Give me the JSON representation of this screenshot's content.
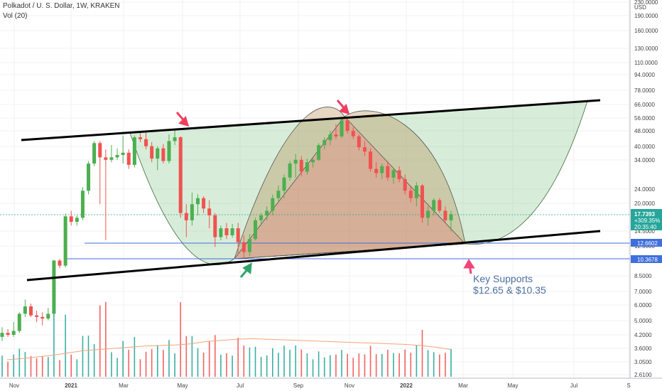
{
  "header": {
    "symbol_line": "Polkadot / U. S. Dollar, 1W, KRAKEN",
    "volume_line": "Vol (20)"
  },
  "annotation": {
    "line1": "Key Supports",
    "line2": "$12.65 & $10.35"
  },
  "colors": {
    "up": "#26a69a",
    "up_candle": "#4caf50",
    "down": "#ef5350",
    "volume_ma": "#f4a37a",
    "support_line": "#3f6fdc",
    "channel": "#000000",
    "arrow_red": "#ef3f5f",
    "arrow_green": "#2fa36b",
    "arrow_pink": "#f0457a"
  },
  "chart_data": {
    "type": "candlestick",
    "title": "Polkadot / U. S. Dollar, 1W, KRAKEN",
    "indicator": "Vol (20)",
    "currency": "USD",
    "y_scale": "log",
    "x_axis_labels": [
      "Nov",
      "2021",
      "Mar",
      "May",
      "Jul",
      "Sep",
      "Nov",
      "2022",
      "Mar",
      "May",
      "Jul",
      "S"
    ],
    "y_axis_labels": [
      "230.0000",
      "USD",
      "190.0000",
      "160.0000",
      "130.0000",
      "110.0000",
      "94.0000",
      "78.0000",
      "66.0000",
      "56.0000",
      "48.0000",
      "40.0000",
      "34.0000",
      "24.0000",
      "20.0000",
      "14.5000",
      "12.0000",
      "8.5000",
      "7.0000",
      "6.0000",
      "5.0000",
      "4.2000",
      "3.6000",
      "3.0500",
      "2.6100"
    ],
    "price_tag": {
      "price": "17.7393",
      "change": "+309.35%",
      "countdown": "20:35:40"
    },
    "support_tags": [
      "12.6602",
      "10.3678"
    ],
    "supports": [
      12.6602,
      10.3678
    ],
    "candles": [
      {
        "o": 4.1,
        "h": 4.6,
        "l": 3.9,
        "c": 4.3
      },
      {
        "o": 4.3,
        "h": 4.5,
        "l": 4.1,
        "c": 4.2
      },
      {
        "o": 4.2,
        "h": 4.9,
        "l": 4.1,
        "c": 4.4
      },
      {
        "o": 4.4,
        "h": 5.5,
        "l": 4.3,
        "c": 5.4
      },
      {
        "o": 5.4,
        "h": 6.4,
        "l": 5.2,
        "c": 5.9
      },
      {
        "o": 5.9,
        "h": 6.1,
        "l": 5.2,
        "c": 5.3
      },
      {
        "o": 5.3,
        "h": 5.6,
        "l": 4.9,
        "c": 5.2
      },
      {
        "o": 5.2,
        "h": 5.5,
        "l": 4.7,
        "c": 5.1
      },
      {
        "o": 5.1,
        "h": 5.8,
        "l": 5.0,
        "c": 5.4
      },
      {
        "o": 5.4,
        "h": 10.3,
        "l": 5.3,
        "c": 10.2
      },
      {
        "o": 10.2,
        "h": 10.4,
        "l": 9.3,
        "c": 9.6
      },
      {
        "o": 9.6,
        "h": 17.9,
        "l": 9.4,
        "c": 17.3
      },
      {
        "o": 17.3,
        "h": 18.5,
        "l": 15.5,
        "c": 16.2
      },
      {
        "o": 16.2,
        "h": 17.5,
        "l": 15.5,
        "c": 17.0
      },
      {
        "o": 17.0,
        "h": 24.5,
        "l": 16.5,
        "c": 23.5
      },
      {
        "o": 23.5,
        "h": 33.5,
        "l": 22.5,
        "c": 32.5
      },
      {
        "o": 32.5,
        "h": 42.5,
        "l": 31.5,
        "c": 41.5
      },
      {
        "o": 41.5,
        "h": 42.5,
        "l": 20.0,
        "c": 35.0
      },
      {
        "o": 35.0,
        "h": 38.5,
        "l": 13.0,
        "c": 34.0
      },
      {
        "o": 34.0,
        "h": 40.5,
        "l": 33.0,
        "c": 35.0
      },
      {
        "o": 35.0,
        "h": 39.0,
        "l": 34.0,
        "c": 36.0
      },
      {
        "o": 36.0,
        "h": 45.5,
        "l": 32.5,
        "c": 37.0
      },
      {
        "o": 37.0,
        "h": 38.5,
        "l": 30.5,
        "c": 32.0
      },
      {
        "o": 32.0,
        "h": 45.5,
        "l": 31.0,
        "c": 44.5
      },
      {
        "o": 44.5,
        "h": 47.5,
        "l": 42.0,
        "c": 43.5
      },
      {
        "o": 43.5,
        "h": 47.5,
        "l": 38.5,
        "c": 40.0
      },
      {
        "o": 40.0,
        "h": 42.0,
        "l": 33.0,
        "c": 34.5
      },
      {
        "o": 34.5,
        "h": 40.0,
        "l": 30.0,
        "c": 39.0
      },
      {
        "o": 39.0,
        "h": 41.0,
        "l": 32.5,
        "c": 33.5
      },
      {
        "o": 33.5,
        "h": 46.0,
        "l": 32.5,
        "c": 42.5
      },
      {
        "o": 42.5,
        "h": 49.0,
        "l": 40.5,
        "c": 44.5
      },
      {
        "o": 44.5,
        "h": 45.0,
        "l": 17.0,
        "c": 18.0
      },
      {
        "o": 18.0,
        "h": 20.0,
        "l": 13.5,
        "c": 16.5
      },
      {
        "o": 16.5,
        "h": 23.0,
        "l": 15.5,
        "c": 20.0
      },
      {
        "o": 20.0,
        "h": 22.5,
        "l": 17.5,
        "c": 21.5
      },
      {
        "o": 21.5,
        "h": 22.0,
        "l": 18.0,
        "c": 19.0
      },
      {
        "o": 19.0,
        "h": 21.0,
        "l": 15.0,
        "c": 17.5
      },
      {
        "o": 17.5,
        "h": 18.0,
        "l": 12.0,
        "c": 13.5
      },
      {
        "o": 13.5,
        "h": 15.5,
        "l": 13.0,
        "c": 15.0
      },
      {
        "o": 15.0,
        "h": 16.0,
        "l": 13.2,
        "c": 13.8
      },
      {
        "o": 13.8,
        "h": 15.8,
        "l": 13.4,
        "c": 15.0
      },
      {
        "o": 15.0,
        "h": 16.0,
        "l": 11.0,
        "c": 12.7
      },
      {
        "o": 12.7,
        "h": 13.8,
        "l": 10.4,
        "c": 11.3
      },
      {
        "o": 11.3,
        "h": 14.0,
        "l": 10.8,
        "c": 13.2
      },
      {
        "o": 13.2,
        "h": 17.0,
        "l": 13.0,
        "c": 16.5
      },
      {
        "o": 16.5,
        "h": 18.0,
        "l": 15.5,
        "c": 17.5
      },
      {
        "o": 17.5,
        "h": 19.5,
        "l": 16.5,
        "c": 18.5
      },
      {
        "o": 18.5,
        "h": 22.5,
        "l": 17.5,
        "c": 21.5
      },
      {
        "o": 21.5,
        "h": 25.0,
        "l": 20.5,
        "c": 23.5
      },
      {
        "o": 23.5,
        "h": 28.5,
        "l": 21.5,
        "c": 27.5
      },
      {
        "o": 27.5,
        "h": 33.5,
        "l": 26.5,
        "c": 32.5
      },
      {
        "o": 32.5,
        "h": 36.5,
        "l": 27.5,
        "c": 34.0
      },
      {
        "o": 34.0,
        "h": 35.5,
        "l": 28.0,
        "c": 29.5
      },
      {
        "o": 29.5,
        "h": 34.5,
        "l": 28.5,
        "c": 33.0
      },
      {
        "o": 33.0,
        "h": 35.0,
        "l": 31.0,
        "c": 34.0
      },
      {
        "o": 34.0,
        "h": 41.5,
        "l": 33.5,
        "c": 40.5
      },
      {
        "o": 40.5,
        "h": 44.5,
        "l": 38.5,
        "c": 43.0
      },
      {
        "o": 43.0,
        "h": 48.0,
        "l": 40.5,
        "c": 46.0
      },
      {
        "o": 46.0,
        "h": 52.0,
        "l": 43.5,
        "c": 45.0
      },
      {
        "o": 45.0,
        "h": 55.5,
        "l": 44.0,
        "c": 54.5
      },
      {
        "o": 54.5,
        "h": 56.0,
        "l": 46.5,
        "c": 48.0
      },
      {
        "o": 48.0,
        "h": 50.0,
        "l": 43.5,
        "c": 45.0
      },
      {
        "o": 45.0,
        "h": 46.0,
        "l": 38.0,
        "c": 39.5
      },
      {
        "o": 39.5,
        "h": 42.5,
        "l": 35.5,
        "c": 37.5
      },
      {
        "o": 37.5,
        "h": 39.0,
        "l": 29.5,
        "c": 30.5
      },
      {
        "o": 30.5,
        "h": 33.0,
        "l": 27.5,
        "c": 29.0
      },
      {
        "o": 29.0,
        "h": 32.5,
        "l": 27.0,
        "c": 31.5
      },
      {
        "o": 31.5,
        "h": 33.5,
        "l": 26.5,
        "c": 27.5
      },
      {
        "o": 27.5,
        "h": 31.0,
        "l": 25.5,
        "c": 30.0
      },
      {
        "o": 30.0,
        "h": 31.5,
        "l": 26.0,
        "c": 27.0
      },
      {
        "o": 27.0,
        "h": 28.5,
        "l": 22.5,
        "c": 23.5
      },
      {
        "o": 23.5,
        "h": 25.0,
        "l": 20.5,
        "c": 21.5
      },
      {
        "o": 21.5,
        "h": 26.0,
        "l": 19.5,
        "c": 25.0
      },
      {
        "o": 25.0,
        "h": 25.5,
        "l": 16.0,
        "c": 17.0
      },
      {
        "o": 17.0,
        "h": 19.5,
        "l": 15.5,
        "c": 18.5
      },
      {
        "o": 18.5,
        "h": 21.5,
        "l": 17.5,
        "c": 21.0
      },
      {
        "o": 21.0,
        "h": 21.5,
        "l": 18.0,
        "c": 18.5
      },
      {
        "o": 18.5,
        "h": 19.5,
        "l": 16.0,
        "c": 16.5
      },
      {
        "o": 16.5,
        "h": 18.5,
        "l": 14.5,
        "c": 17.74
      }
    ],
    "volume_ma": [
      0.3,
      0.32,
      0.35,
      0.38,
      0.42,
      0.46,
      0.48,
      0.5,
      0.52,
      0.54,
      0.55,
      0.56,
      0.58,
      0.62,
      0.64,
      0.66,
      0.67,
      0.66,
      0.65,
      0.64,
      0.63,
      0.62,
      0.61,
      0.6,
      0.59,
      0.58,
      0.57,
      0.55,
      0.52,
      0.48
    ]
  }
}
